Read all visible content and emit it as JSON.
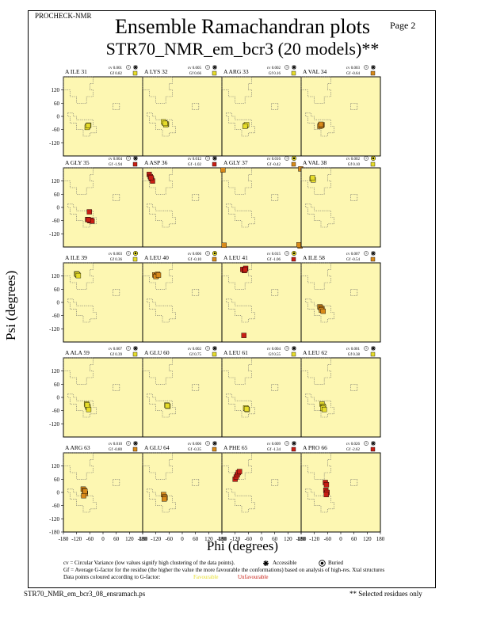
{
  "header": {
    "program": "PROCHECK-NMR",
    "page": "Page  2",
    "title": "Ensemble Ramachandran plots",
    "subtitle": "STR70_NMR_em_bcr3 (20 models)**"
  },
  "axes": {
    "xlabel": "Phi (degrees)",
    "ylabel": "Psi (degrees)",
    "xlim": [
      -180,
      180
    ],
    "ylim": [
      -180,
      180
    ],
    "x_ticks": [
      -180,
      -120,
      -60,
      0,
      60,
      120,
      180
    ],
    "y_ticks": [
      -120,
      -60,
      0,
      60,
      120
    ],
    "bottom_row_y_ticks": [
      -180,
      -120,
      -60,
      0,
      60,
      120
    ]
  },
  "colors": {
    "panel_bg": "#fdf7b2",
    "favourable": "#e6dc2a",
    "unfavourable": "#c81e14",
    "accent_mid": "#d88a1a"
  },
  "legend_text": {
    "cv_def": "cv = Circular Variance (low values signify high clustering of the data points).",
    "accessible": "Accessible",
    "buried": "Buried",
    "gf_def": "Gf = Average G-factor for the residue (the higher the value the more favourable the conformations) based on analysis of high-res. Xtal structures",
    "colour_def": "Data points coloured according to G-factor:",
    "favourable": "Favourable",
    "unfavourable": "Unfavourable"
  },
  "footer": {
    "file": "STR70_NMR_em_bcr3_08_ensramach.ps",
    "note": "** Selected residues only"
  },
  "chart_data": [
    {
      "type": "scatter",
      "residue": "A ILE 31",
      "cv": "cv 0.001",
      "gf": "Gf 0.82",
      "access": "accessible",
      "gf_value": 0.82,
      "x": [
        -70,
        -65,
        -72,
        -68
      ],
      "y": [
        -45,
        -40,
        -50,
        -42
      ]
    },
    {
      "type": "scatter",
      "residue": "A LYS 32",
      "cv": "cv 0.005",
      "gf": "Gf 0.66",
      "access": "accessible",
      "gf_value": 0.66,
      "x": [
        -80,
        -72,
        -85,
        -75,
        -78
      ],
      "y": [
        -30,
        -35,
        -25,
        -38,
        -32
      ]
    },
    {
      "type": "scatter",
      "residue": "A ARG 33",
      "cv": "cv 0.002",
      "gf": "Gf 0.16",
      "access": "accessible",
      "gf_value": 0.16,
      "x": [
        -72,
        -68,
        -75
      ],
      "y": [
        -42,
        -38,
        -45
      ]
    },
    {
      "type": "scatter",
      "residue": "A VAL 34",
      "cv": "cv 0.003",
      "gf": "Gf -0.64",
      "access": "accessible",
      "gf_value": -0.64,
      "x": [
        -92,
        -85,
        -95,
        -88,
        -90
      ],
      "y": [
        -40,
        -38,
        -45,
        -42,
        -36
      ]
    },
    {
      "type": "scatter",
      "residue": "A GLY 35",
      "cv": "cv 0.004",
      "gf": "Gf -1.94",
      "access": "accessible",
      "gf_value": -1.94,
      "x": [
        -70,
        -60,
        -55,
        -62,
        -50,
        -66
      ],
      "y": [
        -55,
        -60,
        -58,
        -20,
        -62,
        -56
      ]
    },
    {
      "type": "scatter",
      "residue": "A ASP 36",
      "cv": "cv 0.012",
      "gf": "Gf -1.02",
      "access": "accessible",
      "gf_value": -1.02,
      "x": [
        -150,
        -145,
        -140,
        -135,
        -142
      ],
      "y": [
        150,
        140,
        130,
        120,
        135
      ]
    },
    {
      "type": "scatter",
      "residue": "A GLY 37",
      "cv": "cv 0.016",
      "gf": "Gf -0.42",
      "access": "buried",
      "gf_value": -0.42,
      "x": [
        -175,
        178,
        175,
        170,
        -170
      ],
      "y": [
        170,
        175,
        -175,
        -170,
        -172
      ]
    },
    {
      "type": "scatter",
      "residue": "A VAL 38",
      "cv": "cv 0.002",
      "gf": "Gf 0.10",
      "access": "buried",
      "gf_value": 0.1,
      "x": [
        -130,
        -125,
        -128
      ],
      "y": [
        130,
        125,
        135
      ]
    },
    {
      "type": "scatter",
      "residue": "A ILE 39",
      "cv": "cv 0.003",
      "gf": "Gf 0.36",
      "access": "buried",
      "gf_value": 0.36,
      "x": [
        -120,
        -115,
        -118,
        -112
      ],
      "y": [
        130,
        125,
        128,
        122
      ]
    },
    {
      "type": "scatter",
      "residue": "A LEU 40",
      "cv": "cv 0.006",
      "gf": "Gf -0.10",
      "access": "buried",
      "gf_value": -0.1,
      "x": [
        -125,
        -118,
        -112,
        -120,
        -108
      ],
      "y": [
        125,
        120,
        128,
        118,
        124
      ]
    },
    {
      "type": "scatter",
      "residue": "A LEU 41",
      "cv": "cv 0.015",
      "gf": "Gf -1.06",
      "access": "buried",
      "gf_value": -1.06,
      "x": [
        -85,
        -78,
        -72,
        -80,
        -75
      ],
      "y": [
        150,
        145,
        155,
        -150,
        148
      ]
    },
    {
      "type": "scatter",
      "residue": "A ILE 58",
      "cv": "cv 0.007",
      "gf": "Gf -0.54",
      "access": "accessible",
      "gf_value": -0.54,
      "x": [
        -95,
        -90,
        -85,
        -88,
        -80
      ],
      "y": [
        -20,
        -25,
        -30,
        -35,
        -40
      ]
    },
    {
      "type": "scatter",
      "residue": "A ALA 59",
      "cv": "cv 0.007",
      "gf": "Gf 0.39",
      "access": "accessible",
      "gf_value": 0.39,
      "x": [
        -75,
        -70,
        -68,
        -72,
        -65
      ],
      "y": [
        -30,
        -40,
        -45,
        -35,
        -55
      ]
    },
    {
      "type": "scatter",
      "residue": "A GLU 60",
      "cv": "cv 0.002",
      "gf": "Gf 0.75",
      "access": "accessible",
      "gf_value": 0.75,
      "x": [
        -70,
        -65,
        -68
      ],
      "y": [
        -35,
        -40,
        -38
      ]
    },
    {
      "type": "scatter",
      "residue": "A LEU 61",
      "cv": "cv 0.004",
      "gf": "Gf 0.55",
      "access": "accessible",
      "gf_value": 0.55,
      "x": [
        -70,
        -65,
        -72,
        -68
      ],
      "y": [
        -50,
        -55,
        -48,
        -52
      ]
    },
    {
      "type": "scatter",
      "residue": "A LEU 62",
      "cv": "cv 0.001",
      "gf": "Gf 0.38",
      "access": "accessible",
      "gf_value": 0.38,
      "x": [
        -85,
        -80,
        -78,
        -82,
        -75
      ],
      "y": [
        -30,
        -40,
        -45,
        -50,
        -55
      ]
    },
    {
      "type": "scatter",
      "residue": "A ARG 63",
      "cv": "cv 0.010",
      "gf": "Gf -0.80",
      "access": "accessible",
      "gf_value": -0.8,
      "x": [
        -90,
        -85,
        -80,
        -88,
        -82
      ],
      "y": [
        15,
        10,
        -5,
        -15,
        5
      ]
    },
    {
      "type": "scatter",
      "residue": "A GLU 64",
      "cv": "cv 0.006",
      "gf": "Gf -0.35",
      "access": "accessible",
      "gf_value": -0.35,
      "x": [
        -85,
        -80,
        -78,
        -82
      ],
      "y": [
        -10,
        -20,
        -25,
        -30
      ]
    },
    {
      "type": "scatter",
      "residue": "A PHE 65",
      "cv": "cv 0.009",
      "gf": "Gf -1.34",
      "access": "accessible",
      "gf_value": -1.34,
      "x": [
        -120,
        -115,
        -110,
        -105,
        -100
      ],
      "y": [
        60,
        70,
        80,
        90,
        95
      ]
    },
    {
      "type": "scatter",
      "residue": "A PRO 66",
      "cv": "cv 0.026",
      "gf": "Gf -2.62",
      "access": "accessible",
      "gf_value": -2.62,
      "x": [
        -70,
        -65,
        -68,
        -62,
        -66
      ],
      "y": [
        45,
        35,
        10,
        0,
        -10
      ]
    }
  ]
}
